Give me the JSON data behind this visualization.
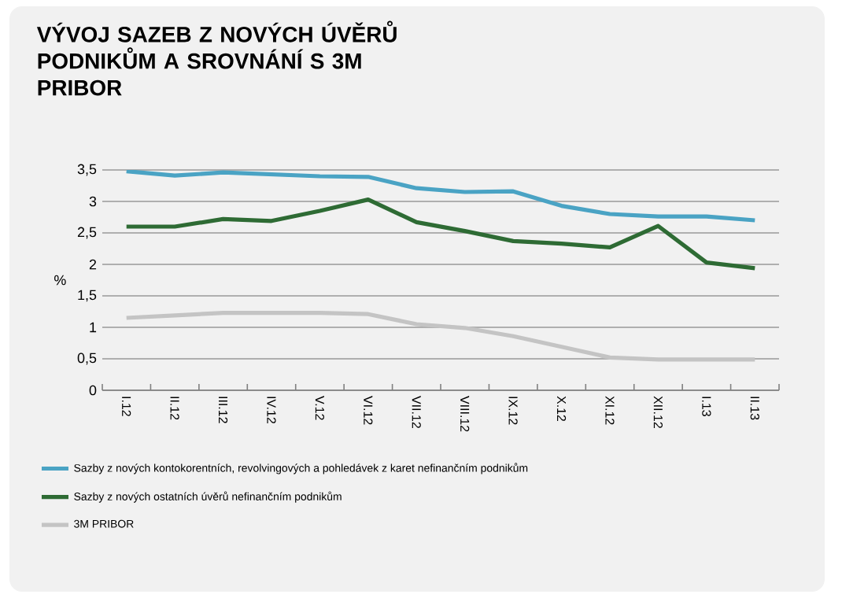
{
  "chart_data": {
    "type": "line",
    "title": "VÝVOJ SAZEB Z NOVÝCH ÚVĚRŮ PODNIKŮM A SROVNÁNÍ S 3M PRIBOR",
    "ylabel": "%",
    "categories": [
      "I.12",
      "II.12",
      "III.12",
      "IV.12",
      "V.12",
      "VI.12",
      "VII.12",
      "VIII.12",
      "IX.12",
      "X.12",
      "XI.12",
      "XII.12",
      "I.13",
      "II.13"
    ],
    "series": [
      {
        "name": "Sazby z nových kontokorentních, revolvingových a pohledávek z karet nefinančním podnikům",
        "color": "#4aa3c4",
        "values": [
          3.48,
          3.41,
          3.46,
          3.43,
          3.4,
          3.39,
          3.21,
          3.15,
          3.16,
          2.93,
          2.8,
          2.76,
          2.76,
          2.7
        ]
      },
      {
        "name": "Sazby z nových ostatních úvěrů nefinančním podnikům",
        "color": "#2e6b34",
        "values": [
          2.6,
          2.6,
          2.72,
          2.69,
          2.85,
          3.03,
          2.67,
          2.53,
          2.37,
          2.33,
          2.27,
          2.61,
          2.03,
          1.94
        ]
      },
      {
        "name": "3M PRIBOR",
        "color": "#c4c4c4",
        "values": [
          1.15,
          1.19,
          1.23,
          1.23,
          1.23,
          1.21,
          1.05,
          0.99,
          0.86,
          0.69,
          0.52,
          0.49,
          0.49,
          0.49
        ]
      }
    ],
    "ylim": [
      0,
      3.5
    ],
    "yticks": [
      0,
      {
        "value": 0.5,
        "label": "0,5"
      },
      1,
      {
        "value": 1.5,
        "label": "1,5"
      },
      2,
      {
        "value": 2.5,
        "label": "2,5"
      },
      3,
      {
        "value": 3.5,
        "label": "3,5"
      }
    ],
    "grid": "y",
    "legend": "bottom",
    "marker": "none",
    "line_style": "solid"
  }
}
